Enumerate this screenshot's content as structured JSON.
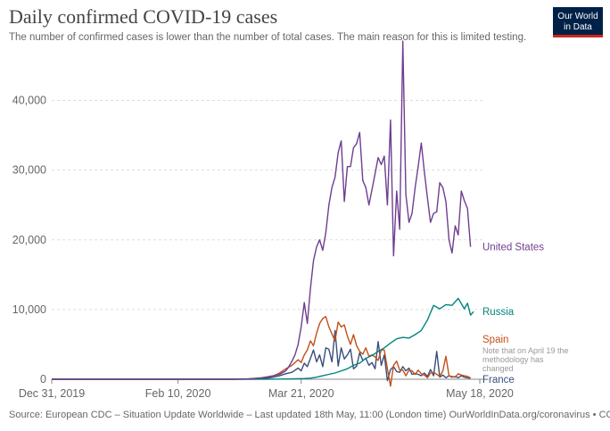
{
  "header": {
    "title": "Daily confirmed COVID-19 cases",
    "subtitle": "The number of confirmed cases is lower than the number of total cases. The main reason for this is limited testing."
  },
  "logo": {
    "line1": "Our World",
    "line2": "in Data",
    "bg_color": "#002147",
    "accent_color": "#ce261e"
  },
  "source": "Source: European CDC – Situation Update Worldwide – Last updated 18th May, 11:00 (London time) OurWorldInData.org/coronavirus • CC BY",
  "chart_data": {
    "type": "line",
    "title": "Daily confirmed COVID-19 cases",
    "xlabel": "",
    "ylabel": "",
    "ylim": [
      0,
      48000
    ],
    "xlim": [
      0,
      139
    ],
    "grid": true,
    "y_ticks": [
      {
        "value": 0,
        "label": "0"
      },
      {
        "value": 10000,
        "label": "10,000"
      },
      {
        "value": 20000,
        "label": "20,000"
      },
      {
        "value": 30000,
        "label": "30,000"
      },
      {
        "value": 40000,
        "label": "40,000"
      }
    ],
    "x_ticks": [
      {
        "value": 0,
        "label": "Dec 31, 2019"
      },
      {
        "value": 41,
        "label": "Feb 10, 2020"
      },
      {
        "value": 81,
        "label": "Mar 21, 2020"
      },
      {
        "value": 139,
        "label": "May 18, 2020"
      }
    ],
    "x_unit": "days since Dec 31, 2019",
    "series": [
      {
        "name": "United States",
        "color": "#6d3e91",
        "points": [
          [
            0,
            0
          ],
          [
            58,
            0
          ],
          [
            64,
            50
          ],
          [
            66,
            100
          ],
          [
            68,
            200
          ],
          [
            70,
            300
          ],
          [
            72,
            500
          ],
          [
            74,
            700
          ],
          [
            76,
            1200
          ],
          [
            77,
            1800
          ],
          [
            78,
            2600
          ],
          [
            79,
            3500
          ],
          [
            80,
            5000
          ],
          [
            81,
            7500
          ],
          [
            82,
            11000
          ],
          [
            83,
            8000
          ],
          [
            84,
            13000
          ],
          [
            85,
            17000
          ],
          [
            86,
            19000
          ],
          [
            87,
            20000
          ],
          [
            88,
            18500
          ],
          [
            89,
            21000
          ],
          [
            90,
            25000
          ],
          [
            91,
            27500
          ],
          [
            92,
            29000
          ],
          [
            93,
            32500
          ],
          [
            94,
            34200
          ],
          [
            95,
            25500
          ],
          [
            96,
            30500
          ],
          [
            97,
            30500
          ],
          [
            98,
            33200
          ],
          [
            99,
            33800
          ],
          [
            100,
            35400
          ],
          [
            101,
            28500
          ],
          [
            102,
            27500
          ],
          [
            103,
            25000
          ],
          [
            104,
            27200
          ],
          [
            105,
            29500
          ],
          [
            106,
            31800
          ],
          [
            107,
            30800
          ],
          [
            108,
            32000
          ],
          [
            109,
            25000
          ],
          [
            110,
            37200
          ],
          [
            111,
            17700
          ],
          [
            112,
            27000
          ],
          [
            113,
            21500
          ],
          [
            114,
            48500
          ],
          [
            115,
            26500
          ],
          [
            116,
            22500
          ],
          [
            117,
            23800
          ],
          [
            118,
            27500
          ],
          [
            119,
            30500
          ],
          [
            120,
            33900
          ],
          [
            121,
            29800
          ],
          [
            122,
            26000
          ],
          [
            123,
            22500
          ],
          [
            124,
            23800
          ],
          [
            125,
            24000
          ],
          [
            126,
            28200
          ],
          [
            127,
            27500
          ],
          [
            128,
            25500
          ],
          [
            129,
            20000
          ],
          [
            130,
            18100
          ],
          [
            131,
            22000
          ],
          [
            132,
            20700
          ],
          [
            133,
            27000
          ],
          [
            134,
            25600
          ],
          [
            135,
            24500
          ],
          [
            136,
            19000
          ]
        ]
      },
      {
        "name": "Russia",
        "color": "#00847e",
        "points": [
          [
            0,
            0
          ],
          [
            65,
            0
          ],
          [
            72,
            10
          ],
          [
            78,
            50
          ],
          [
            82,
            100
          ],
          [
            84,
            150
          ],
          [
            86,
            300
          ],
          [
            88,
            500
          ],
          [
            90,
            700
          ],
          [
            92,
            900
          ],
          [
            94,
            1200
          ],
          [
            96,
            1500
          ],
          [
            98,
            2000
          ],
          [
            100,
            2300
          ],
          [
            102,
            3000
          ],
          [
            104,
            3400
          ],
          [
            106,
            4000
          ],
          [
            108,
            4500
          ],
          [
            110,
            5200
          ],
          [
            112,
            5800
          ],
          [
            114,
            6000
          ],
          [
            116,
            5900
          ],
          [
            118,
            6400
          ],
          [
            120,
            7000
          ],
          [
            122,
            8500
          ],
          [
            124,
            10600
          ],
          [
            126,
            10100
          ],
          [
            128,
            10700
          ],
          [
            130,
            10600
          ],
          [
            132,
            11600
          ],
          [
            134,
            10100
          ],
          [
            135,
            10900
          ],
          [
            136,
            9200
          ],
          [
            137,
            9700
          ]
        ]
      },
      {
        "name": "Spain",
        "color": "#c15019",
        "points": [
          [
            0,
            0
          ],
          [
            58,
            0
          ],
          [
            64,
            80
          ],
          [
            68,
            200
          ],
          [
            72,
            500
          ],
          [
            74,
            900
          ],
          [
            76,
            1500
          ],
          [
            78,
            2000
          ],
          [
            80,
            2800
          ],
          [
            81,
            2400
          ],
          [
            82,
            3500
          ],
          [
            83,
            4200
          ],
          [
            84,
            5500
          ],
          [
            85,
            4800
          ],
          [
            86,
            6600
          ],
          [
            87,
            8000
          ],
          [
            88,
            8700
          ],
          [
            89,
            9000
          ],
          [
            90,
            7500
          ],
          [
            91,
            6500
          ],
          [
            92,
            5500
          ],
          [
            93,
            8200
          ],
          [
            94,
            7500
          ],
          [
            95,
            7800
          ],
          [
            96,
            6200
          ],
          [
            97,
            5000
          ],
          [
            98,
            6400
          ],
          [
            99,
            4800
          ],
          [
            100,
            4000
          ],
          [
            101,
            3600
          ],
          [
            102,
            4500
          ],
          [
            103,
            3300
          ],
          [
            104,
            3500
          ],
          [
            105,
            3200
          ],
          [
            106,
            2700
          ],
          [
            107,
            4200
          ],
          [
            108,
            4200
          ],
          [
            109,
            1500
          ],
          [
            110,
            -1000
          ],
          [
            111,
            2000
          ],
          [
            112,
            2600
          ],
          [
            113,
            1300
          ],
          [
            114,
            1300
          ],
          [
            115,
            500
          ],
          [
            116,
            1300
          ],
          [
            117,
            1200
          ],
          [
            118,
            700
          ],
          [
            119,
            1300
          ],
          [
            120,
            800
          ],
          [
            121,
            600
          ],
          [
            122,
            200
          ],
          [
            123,
            900
          ],
          [
            124,
            1000
          ],
          [
            125,
            700
          ],
          [
            126,
            400
          ],
          [
            127,
            1200
          ],
          [
            128,
            3300
          ],
          [
            129,
            500
          ],
          [
            130,
            400
          ],
          [
            131,
            300
          ],
          [
            132,
            800
          ],
          [
            133,
            600
          ],
          [
            134,
            500
          ],
          [
            135,
            400
          ],
          [
            136,
            200
          ]
        ]
      },
      {
        "name": "France",
        "color": "#3a4e7a",
        "points": [
          [
            0,
            0
          ],
          [
            60,
            0
          ],
          [
            66,
            50
          ],
          [
            70,
            150
          ],
          [
            72,
            300
          ],
          [
            74,
            500
          ],
          [
            76,
            800
          ],
          [
            78,
            1000
          ],
          [
            80,
            1600
          ],
          [
            81,
            1200
          ],
          [
            82,
            2300
          ],
          [
            83,
            1800
          ],
          [
            84,
            3000
          ],
          [
            85,
            4200
          ],
          [
            86,
            2500
          ],
          [
            87,
            3500
          ],
          [
            88,
            1800
          ],
          [
            89,
            4500
          ],
          [
            90,
            4300
          ],
          [
            91,
            2500
          ],
          [
            92,
            7000
          ],
          [
            93,
            1900
          ],
          [
            94,
            4500
          ],
          [
            95,
            2900
          ],
          [
            96,
            3500
          ],
          [
            97,
            4300
          ],
          [
            98,
            1500
          ],
          [
            99,
            1900
          ],
          [
            100,
            3800
          ],
          [
            101,
            2700
          ],
          [
            102,
            3000
          ],
          [
            103,
            2000
          ],
          [
            104,
            2400
          ],
          [
            105,
            1500
          ],
          [
            106,
            5400
          ],
          [
            107,
            2000
          ],
          [
            108,
            3500
          ],
          [
            109,
            -200
          ],
          [
            110,
            1400
          ],
          [
            111,
            1800
          ],
          [
            112,
            1100
          ],
          [
            113,
            1000
          ],
          [
            114,
            1800
          ],
          [
            115,
            1200
          ],
          [
            116,
            1600
          ],
          [
            117,
            700
          ],
          [
            118,
            800
          ],
          [
            119,
            700
          ],
          [
            120,
            500
          ],
          [
            121,
            900
          ],
          [
            122,
            400
          ],
          [
            123,
            1400
          ],
          [
            124,
            500
          ],
          [
            125,
            4000
          ],
          [
            126,
            300
          ],
          [
            127,
            600
          ],
          [
            128,
            200
          ],
          [
            129,
            500
          ],
          [
            130,
            300
          ],
          [
            131,
            400
          ],
          [
            132,
            200
          ],
          [
            133,
            500
          ],
          [
            134,
            300
          ],
          [
            135,
            200
          ],
          [
            136,
            150
          ]
        ]
      }
    ],
    "labels": [
      {
        "series": "United States",
        "text": "United States"
      },
      {
        "series": "Russia",
        "text": "Russia"
      },
      {
        "series": "Spain",
        "text": "Spain"
      },
      {
        "series": "France",
        "text": "France"
      }
    ],
    "annotation": {
      "series": "Spain",
      "lines": [
        "Note that on April 19 the",
        "methodology has",
        "changed"
      ]
    }
  }
}
